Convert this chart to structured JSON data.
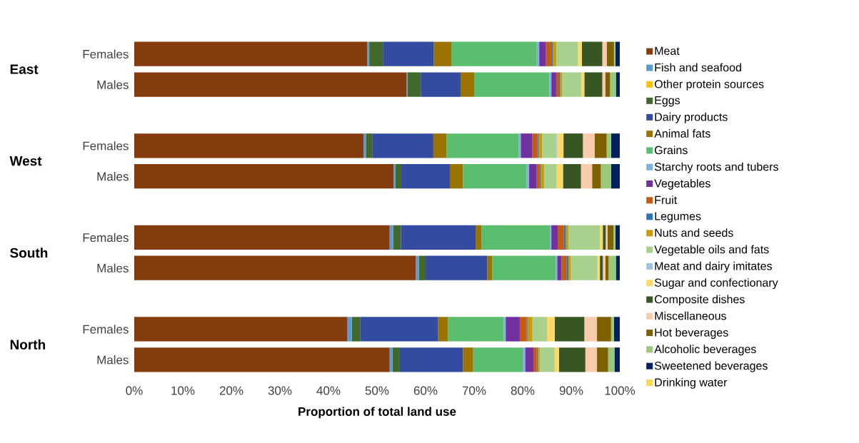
{
  "chart_data": {
    "type": "bar",
    "orientation": "horizontal",
    "stacked": true,
    "xlabel": "Proportion of total land use",
    "legend": "right",
    "categories": [
      "Females",
      "Males",
      "Females",
      "Males",
      "Females",
      "Males",
      "Females",
      "Males"
    ],
    "annotations": [
      "East",
      "West",
      "South",
      "North"
    ],
    "xlim": [
      0,
      100
    ],
    "xticks": [
      {
        "value": 0,
        "label": "0%"
      },
      {
        "value": 10,
        "label": "10%"
      },
      {
        "value": 20,
        "label": "20%"
      },
      {
        "value": 30,
        "label": "30%"
      },
      {
        "value": 40,
        "label": "40%"
      },
      {
        "value": 50,
        "label": "50%"
      },
      {
        "value": 60,
        "label": "60%"
      },
      {
        "value": 70,
        "label": "70%"
      },
      {
        "value": 80,
        "label": "80%"
      },
      {
        "value": 90,
        "label": "90%"
      },
      {
        "value": 100,
        "label": "100%"
      }
    ],
    "series": [
      {
        "name": "Meat",
        "color": "#843c0c",
        "values": [
          48.0,
          56.1,
          47.2,
          53.4,
          52.6,
          58.0,
          43.9,
          52.6
        ]
      },
      {
        "name": "Fish and seafood",
        "color": "#5b9bd5",
        "values": [
          0.4,
          0.2,
          0.5,
          0.4,
          0.7,
          0.6,
          0.9,
          0.6
        ]
      },
      {
        "name": "Other protein sources",
        "color": "#ffc000",
        "values": [
          0,
          0,
          0,
          0,
          0,
          0,
          0,
          0
        ]
      },
      {
        "name": "Eggs",
        "color": "#43682b",
        "values": [
          2.8,
          2.7,
          1.3,
          1.2,
          1.6,
          1.4,
          1.7,
          1.5
        ]
      },
      {
        "name": "Dairy products",
        "color": "#334c9f",
        "values": [
          10.5,
          8.2,
          12.6,
          10.0,
          15.4,
          12.7,
          16.1,
          13.0
        ]
      },
      {
        "name": "Animal fats",
        "color": "#9a7300",
        "values": [
          3.6,
          2.8,
          2.7,
          2.7,
          1.2,
          1.0,
          2.0,
          2.1
        ]
      },
      {
        "name": "Grains",
        "color": "#5abe6e",
        "values": [
          17.6,
          15.5,
          14.9,
          13.1,
          14.1,
          13.1,
          11.5,
          10.2
        ]
      },
      {
        "name": "Starchy roots and tubers",
        "color": "#7fb1e0",
        "values": [
          0.5,
          0.4,
          0.4,
          0.5,
          0.3,
          0.3,
          0.4,
          0.5
        ]
      },
      {
        "name": "Vegetables",
        "color": "#7030a0",
        "values": [
          1.4,
          1.0,
          2.4,
          1.6,
          1.3,
          0.9,
          2.9,
          1.7
        ]
      },
      {
        "name": "Fruit",
        "color": "#c55a11",
        "values": [
          1.1,
          0.6,
          1.0,
          0.6,
          1.3,
          1.0,
          1.4,
          0.7
        ]
      },
      {
        "name": "Legumes",
        "color": "#2e75b6",
        "values": [
          0.3,
          0.2,
          0.3,
          0.2,
          0.4,
          0.4,
          0.2,
          0.2
        ]
      },
      {
        "name": "Nuts and seeds",
        "color": "#cc9a06",
        "values": [
          0.7,
          0.4,
          0.7,
          0.7,
          0.5,
          0.5,
          1.0,
          0.4
        ]
      },
      {
        "name": "Vegetable oils and fats",
        "color": "#a9d18e",
        "values": [
          4.5,
          4.0,
          2.8,
          2.6,
          6.5,
          5.5,
          3.0,
          3.1
        ]
      },
      {
        "name": "Meat and dairy imitates",
        "color": "#9dc3e6",
        "values": [
          0,
          0,
          0.3,
          0,
          0,
          0,
          0,
          0
        ]
      },
      {
        "name": "Sugar and confectionary",
        "color": "#ffd966",
        "values": [
          0.8,
          0.6,
          1.3,
          1.3,
          0.6,
          0.5,
          1.6,
          0.9
        ]
      },
      {
        "name": "Composite dishes",
        "color": "#375623",
        "values": [
          4.2,
          3.7,
          4.0,
          3.7,
          0.6,
          0.6,
          6.1,
          5.4
        ]
      },
      {
        "name": "Miscellaneous",
        "color": "#f8cbad",
        "values": [
          0.9,
          0.6,
          2.4,
          2.3,
          0.4,
          0.5,
          2.6,
          2.4
        ]
      },
      {
        "name": "Hot beverages",
        "color": "#7f6000",
        "values": [
          1.5,
          1.0,
          2.5,
          1.8,
          1.2,
          0.7,
          2.9,
          2.3
        ]
      },
      {
        "name": "Alcoholic beverages",
        "color": "#99c979",
        "values": [
          0.3,
          1.2,
          0.9,
          2.1,
          0.4,
          1.5,
          0.6,
          1.3
        ]
      },
      {
        "name": "Sweetened beverages",
        "color": "#002060",
        "values": [
          0.9,
          0.8,
          1.8,
          1.8,
          0.9,
          0.8,
          1.2,
          1.1
        ]
      },
      {
        "name": "Drinking water",
        "color": "#ffd54f",
        "values": [
          0,
          0,
          0,
          0,
          0,
          0,
          0,
          0
        ]
      }
    ]
  }
}
